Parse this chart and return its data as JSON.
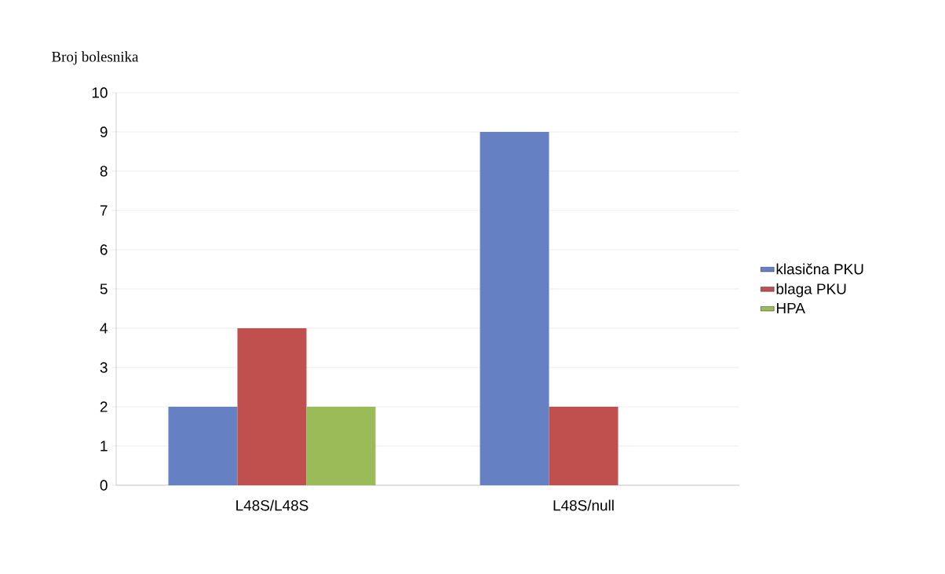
{
  "chart_data": {
    "type": "bar",
    "ylabel": "Broj bolesnika",
    "categories": [
      "L48S/L48S",
      "L48S/null"
    ],
    "series": [
      {
        "name": "klasična PKU",
        "color": "#6680c4",
        "values": [
          2,
          9
        ]
      },
      {
        "name": "blaga PKU",
        "color": "#c0504d",
        "values": [
          4,
          2
        ]
      },
      {
        "name": "HPA",
        "color": "#9bbb59",
        "values": [
          2,
          0
        ]
      }
    ],
    "ylim": [
      0,
      10
    ],
    "yticks": [
      0,
      1,
      2,
      3,
      4,
      5,
      6,
      7,
      8,
      9,
      10
    ],
    "grid": "y",
    "legend": "right"
  }
}
